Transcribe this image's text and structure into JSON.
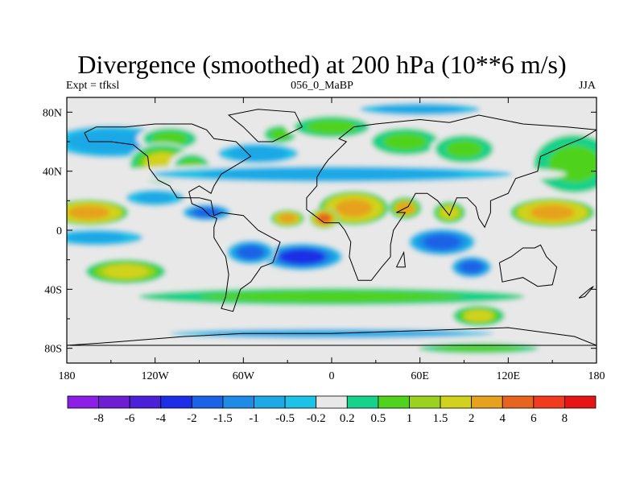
{
  "title": "Divergence (smoothed) at 200 hPa (10**6 m/s)",
  "subtitle_left": "Expt = tfksl",
  "subtitle_center": "056_0_MaBP",
  "subtitle_right": "JJA",
  "chart_data": {
    "type": "contour-map",
    "variable": "Divergence (smoothed)",
    "level": "200 hPa",
    "units": "10**6 m/s",
    "experiment": "tfksl",
    "run": "056_0_MaBP",
    "season": "JJA",
    "xlim": [
      -180,
      180
    ],
    "ylim": [
      -90,
      90
    ],
    "x_ticks": [
      {
        "value": -180,
        "label": "180"
      },
      {
        "value": -120,
        "label": "120W"
      },
      {
        "value": -60,
        "label": "60W"
      },
      {
        "value": 0,
        "label": "0"
      },
      {
        "value": 60,
        "label": "60E"
      },
      {
        "value": 120,
        "label": "120E"
      },
      {
        "value": 180,
        "label": "180"
      }
    ],
    "y_ticks": [
      {
        "value": 80,
        "label": "80N"
      },
      {
        "value": 40,
        "label": "40N"
      },
      {
        "value": 0,
        "label": "0"
      },
      {
        "value": -40,
        "label": "40S"
      },
      {
        "value": -80,
        "label": "80S"
      }
    ],
    "colorbar": {
      "colors": [
        "#8c1ee6",
        "#6e1ed2",
        "#4a20d8",
        "#1e2ee6",
        "#1a62e6",
        "#1e8ce6",
        "#1ea8e6",
        "#1ec2e6",
        "#e8e8e8",
        "#16d28a",
        "#50d21e",
        "#9ad21e",
        "#d2d21e",
        "#e6a21e",
        "#e6641e",
        "#f23a1e",
        "#e61414"
      ],
      "labels": [
        "-8",
        "-6",
        "-4",
        "-2",
        "-1.5",
        "-1",
        "-0.5",
        "-0.2",
        "0.2",
        "0.5",
        "1",
        "1.5",
        "2",
        "4",
        "6",
        "8"
      ]
    },
    "features": [
      {
        "name": "nh-ocean-band",
        "lon": -150,
        "lat": 60,
        "w": 60,
        "h": 16,
        "v": -0.7
      },
      {
        "name": "e-pacific-conv-north",
        "lon": -110,
        "lat": 62,
        "w": 25,
        "h": 10,
        "v": 0.8
      },
      {
        "name": "n-america-west",
        "lon": -115,
        "lat": 45,
        "w": 25,
        "h": 15,
        "v": 1.6
      },
      {
        "name": "n-america-central",
        "lon": -95,
        "lat": 42,
        "w": 18,
        "h": 14,
        "v": 0.7
      },
      {
        "name": "n-atlantic-band",
        "lon": -50,
        "lat": 52,
        "w": 40,
        "h": 10,
        "v": -0.7
      },
      {
        "name": "n-atlantic-high",
        "lon": -35,
        "lat": 65,
        "w": 15,
        "h": 8,
        "v": 0.8
      },
      {
        "name": "europe-north",
        "lon": 0,
        "lat": 70,
        "w": 35,
        "h": 10,
        "v": 0.8
      },
      {
        "name": "arctic-band",
        "lon": 60,
        "lat": 82,
        "w": 60,
        "h": 6,
        "v": -0.7
      },
      {
        "name": "siberia",
        "lon": 50,
        "lat": 60,
        "w": 30,
        "h": 12,
        "v": 0.9
      },
      {
        "name": "central-asia",
        "lon": 90,
        "lat": 55,
        "w": 25,
        "h": 12,
        "v": 1.0
      },
      {
        "name": "n-pacific-div",
        "lon": 165,
        "lat": 45,
        "w": 35,
        "h": 25,
        "v": 1.0
      },
      {
        "name": "mid-lat-north-band",
        "lon": 0,
        "lat": 38,
        "w": 180,
        "h": 8,
        "v": -0.7
      },
      {
        "name": "tropical-pacific-div",
        "lon": -165,
        "lat": 12,
        "w": 28,
        "h": 9,
        "v": 4.0
      },
      {
        "name": "w-pacific-div",
        "lon": 150,
        "lat": 12,
        "w": 30,
        "h": 10,
        "v": 4.0
      },
      {
        "name": "africa-div",
        "lon": 15,
        "lat": 15,
        "w": 25,
        "h": 12,
        "v": 3.8
      },
      {
        "name": "arabia-div",
        "lon": 50,
        "lat": 15,
        "w": 12,
        "h": 8,
        "v": 2.2
      },
      {
        "name": "india-div",
        "lon": 80,
        "lat": 12,
        "w": 12,
        "h": 8,
        "v": 2.0
      },
      {
        "name": "w-atlantic-div",
        "lon": -30,
        "lat": 8,
        "w": 12,
        "h": 6,
        "v": 3.0
      },
      {
        "name": "w-africa-div",
        "lon": -5,
        "lat": 8,
        "w": 10,
        "h": 7,
        "v": 4.5
      },
      {
        "name": "central-america-conv",
        "lon": -85,
        "lat": 12,
        "w": 18,
        "h": 6,
        "v": -2.0
      },
      {
        "name": "e-pacific-conv",
        "lon": -120,
        "lat": 22,
        "w": 25,
        "h": 7,
        "v": -1.0
      },
      {
        "name": "s-atlantic-conv",
        "lon": -20,
        "lat": -18,
        "w": 30,
        "h": 10,
        "v": -2.2
      },
      {
        "name": "s-america-conv",
        "lon": -55,
        "lat": -15,
        "w": 18,
        "h": 9,
        "v": -1.8
      },
      {
        "name": "indian-ocean-conv",
        "lon": 75,
        "lat": -8,
        "w": 25,
        "h": 10,
        "v": -2.0
      },
      {
        "name": "s-indian-conv",
        "lon": 95,
        "lat": -25,
        "w": 15,
        "h": 8,
        "v": -2.0
      },
      {
        "name": "s-pacific-div",
        "lon": -140,
        "lat": -28,
        "w": 30,
        "h": 9,
        "v": 2.0
      },
      {
        "name": "s-pacific-conv",
        "lon": -160,
        "lat": -5,
        "w": 40,
        "h": 7,
        "v": -1.0
      },
      {
        "name": "sh-band",
        "lon": 0,
        "lat": -45,
        "w": 180,
        "h": 8,
        "v": 0.8
      },
      {
        "name": "s-indian-div",
        "lon": 100,
        "lat": -58,
        "w": 20,
        "h": 8,
        "v": 1.6
      },
      {
        "name": "southern-ocean-band",
        "lon": 0,
        "lat": -70,
        "w": 180,
        "h": 5,
        "v": -0.6
      },
      {
        "name": "antarctica-edge",
        "lon": 100,
        "lat": -80,
        "w": 60,
        "h": 5,
        "v": 0.7
      }
    ],
    "coastlines": [
      [
        [
          -168,
          66
        ],
        [
          -160,
          70
        ],
        [
          -140,
          70
        ],
        [
          -120,
          72
        ],
        [
          -95,
          72
        ],
        [
          -85,
          68
        ],
        [
          -80,
          62
        ],
        [
          -65,
          60
        ],
        [
          -55,
          50
        ],
        [
          -65,
          44
        ],
        [
          -75,
          38
        ],
        [
          -80,
          30
        ],
        [
          -82,
          25
        ],
        [
          -90,
          30
        ],
        [
          -97,
          26
        ],
        [
          -95,
          18
        ],
        [
          -88,
          15
        ],
        [
          -83,
          10
        ],
        [
          -78,
          8
        ],
        [
          -80,
          2
        ],
        [
          -80,
          -5
        ],
        [
          -72,
          -18
        ],
        [
          -70,
          -30
        ],
        [
          -72,
          -45
        ],
        [
          -75,
          -53
        ],
        [
          -67,
          -55
        ],
        [
          -62,
          -40
        ],
        [
          -55,
          -35
        ],
        [
          -48,
          -25
        ],
        [
          -40,
          -22
        ],
        [
          -35,
          -8
        ],
        [
          -50,
          0
        ],
        [
          -60,
          10
        ],
        [
          -75,
          12
        ],
        [
          -80,
          10
        ],
        [
          -82,
          20
        ],
        [
          -90,
          22
        ],
        [
          -105,
          22
        ],
        [
          -110,
          30
        ],
        [
          -118,
          34
        ],
        [
          -124,
          42
        ],
        [
          -125,
          50
        ],
        [
          -135,
          58
        ],
        [
          -150,
          60
        ],
        [
          -165,
          60
        ],
        [
          -168,
          66
        ]
      ],
      [
        [
          -50,
          60
        ],
        [
          -40,
          60
        ],
        [
          -20,
          70
        ],
        [
          -25,
          80
        ],
        [
          -50,
          82
        ],
        [
          -70,
          78
        ],
        [
          -60,
          70
        ],
        [
          -50,
          60
        ]
      ],
      [
        [
          -10,
          36
        ],
        [
          -5,
          44
        ],
        [
          -2,
          48
        ],
        [
          5,
          55
        ],
        [
          10,
          60
        ],
        [
          5,
          62
        ],
        [
          15,
          70
        ],
        [
          30,
          72
        ],
        [
          60,
          75
        ],
        [
          80,
          73
        ],
        [
          100,
          78
        ],
        [
          130,
          72
        ],
        [
          160,
          70
        ],
        [
          180,
          68
        ],
        [
          170,
          62
        ],
        [
          160,
          58
        ],
        [
          142,
          50
        ],
        [
          140,
          40
        ],
        [
          125,
          35
        ],
        [
          120,
          25
        ],
        [
          108,
          20
        ],
        [
          108,
          12
        ],
        [
          104,
          2
        ],
        [
          100,
          8
        ],
        [
          98,
          16
        ],
        [
          92,
          22
        ],
        [
          85,
          22
        ],
        [
          80,
          10
        ],
        [
          72,
          20
        ],
        [
          65,
          25
        ],
        [
          57,
          25
        ],
        [
          52,
          16
        ],
        [
          44,
          12
        ],
        [
          50,
          12
        ],
        [
          42,
          0
        ],
        [
          40,
          -10
        ],
        [
          40,
          -18
        ],
        [
          34,
          -25
        ],
        [
          27,
          -34
        ],
        [
          18,
          -34
        ],
        [
          12,
          -18
        ],
        [
          13,
          -8
        ],
        [
          9,
          0
        ],
        [
          5,
          5
        ],
        [
          -5,
          5
        ],
        [
          -17,
          14
        ],
        [
          -17,
          22
        ],
        [
          -10,
          30
        ],
        [
          -10,
          36
        ]
      ],
      [
        [
          114,
          -22
        ],
        [
          122,
          -18
        ],
        [
          130,
          -12
        ],
        [
          138,
          -12
        ],
        [
          142,
          -10
        ],
        [
          146,
          -18
        ],
        [
          153,
          -25
        ],
        [
          150,
          -37
        ],
        [
          140,
          -38
        ],
        [
          130,
          -32
        ],
        [
          116,
          -35
        ],
        [
          114,
          -22
        ]
      ],
      [
        [
          -60,
          -70
        ],
        [
          0,
          -70
        ],
        [
          60,
          -68
        ],
        [
          120,
          -66
        ],
        [
          165,
          -72
        ],
        [
          180,
          -78
        ],
        [
          -180,
          -78
        ],
        [
          -150,
          -76
        ],
        [
          -100,
          -72
        ],
        [
          -60,
          -70
        ]
      ],
      [
        [
          44,
          -25
        ],
        [
          49,
          -15
        ],
        [
          50,
          -25
        ],
        [
          44,
          -25
        ]
      ],
      [
        [
          168,
          -46
        ],
        [
          175,
          -40
        ],
        [
          178,
          -38
        ],
        [
          172,
          -45
        ],
        [
          168,
          -46
        ]
      ]
    ]
  }
}
